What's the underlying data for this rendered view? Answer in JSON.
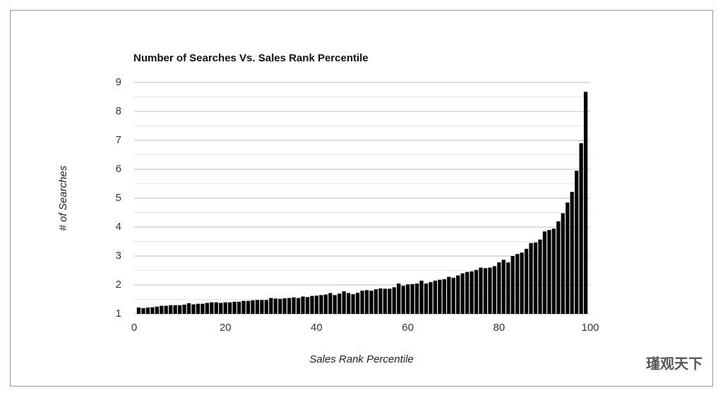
{
  "chart_data": {
    "type": "bar",
    "title": "Number of Searches Vs. Sales Rank Percentile",
    "x_label": "Sales Rank Percentile",
    "y_label": "# of Searches",
    "x": [
      1,
      2,
      3,
      4,
      5,
      6,
      7,
      8,
      9,
      10,
      11,
      12,
      13,
      14,
      15,
      16,
      17,
      18,
      19,
      20,
      21,
      22,
      23,
      24,
      25,
      26,
      27,
      28,
      29,
      30,
      31,
      32,
      33,
      34,
      35,
      36,
      37,
      38,
      39,
      40,
      41,
      42,
      43,
      44,
      45,
      46,
      47,
      48,
      49,
      50,
      51,
      52,
      53,
      54,
      55,
      56,
      57,
      58,
      59,
      60,
      61,
      62,
      63,
      64,
      65,
      66,
      67,
      68,
      69,
      70,
      71,
      72,
      73,
      74,
      75,
      76,
      77,
      78,
      79,
      80,
      81,
      82,
      83,
      84,
      85,
      86,
      87,
      88,
      89,
      90,
      91,
      92,
      93,
      94,
      95,
      96,
      97,
      98,
      99
    ],
    "values": [
      1.22,
      1.2,
      1.22,
      1.23,
      1.25,
      1.28,
      1.28,
      1.3,
      1.3,
      1.3,
      1.32,
      1.37,
      1.33,
      1.35,
      1.35,
      1.38,
      1.4,
      1.4,
      1.38,
      1.4,
      1.4,
      1.42,
      1.42,
      1.45,
      1.45,
      1.47,
      1.48,
      1.48,
      1.48,
      1.55,
      1.53,
      1.52,
      1.54,
      1.55,
      1.57,
      1.55,
      1.6,
      1.58,
      1.62,
      1.63,
      1.65,
      1.67,
      1.72,
      1.65,
      1.7,
      1.78,
      1.72,
      1.68,
      1.73,
      1.8,
      1.82,
      1.8,
      1.85,
      1.88,
      1.87,
      1.87,
      1.92,
      2.05,
      1.97,
      2.02,
      2.03,
      2.05,
      2.15,
      2.05,
      2.1,
      2.15,
      2.18,
      2.2,
      2.28,
      2.25,
      2.33,
      2.4,
      2.45,
      2.47,
      2.52,
      2.6,
      2.58,
      2.6,
      2.65,
      2.78,
      2.87,
      2.78,
      3.0,
      3.07,
      3.12,
      3.25,
      3.45,
      3.47,
      3.57,
      3.85,
      3.9,
      3.95,
      4.2,
      4.48,
      4.85,
      5.22,
      5.95,
      6.9,
      8.68
    ],
    "color": "#000000",
    "xlim": [
      0,
      100
    ],
    "xticks": [
      0,
      20,
      40,
      60,
      80,
      100
    ],
    "ylim": [
      1,
      9
    ],
    "yticks": [
      1,
      2,
      3,
      4,
      5,
      6,
      7,
      8,
      9
    ],
    "yminor": [
      1.5,
      2.5,
      3.5,
      4.5,
      5.5,
      6.5,
      7.5,
      8.5
    ],
    "grid": true
  },
  "watermark": "瑾观天下"
}
